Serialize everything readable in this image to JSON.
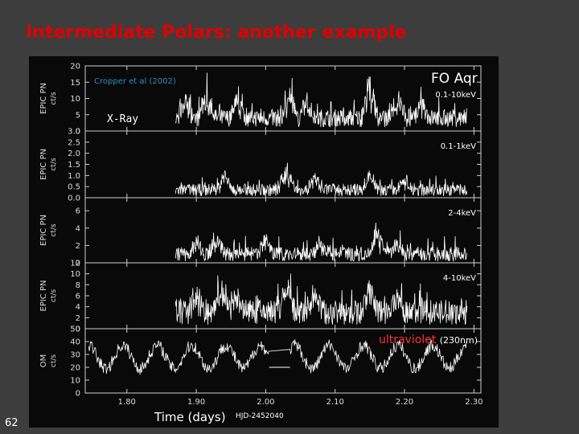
{
  "slide": {
    "title": "Intermediate Polars: another example",
    "number": "62"
  },
  "annotations": {
    "citation": "Cropper et al (2002)",
    "xray_label": "X-Ray",
    "object_name": "FO Aqr"
  },
  "chart_data": {
    "type": "line",
    "xlabel": "Time (days)",
    "xlabel_sub": "HJD-2452040",
    "x_range": [
      1.74,
      2.31
    ],
    "x_ticks": [
      "1.80",
      "1.90",
      "2.00",
      "2.10",
      "2.20",
      "2.30"
    ],
    "x_tick_values": [
      1.8,
      1.9,
      2.0,
      2.1,
      2.2,
      2.3
    ],
    "panels": [
      {
        "id": "epic-pn-0.1-10keV",
        "ylabel": "EPIC PN",
        "yunit": "ct/s",
        "band": "0.1-10keV",
        "ylim": [
          0,
          20
        ],
        "y_tick_labels": [
          "20",
          "15",
          "10",
          "5",
          "0"
        ],
        "y_tick_values": [
          20,
          15,
          10,
          5,
          0
        ],
        "data_range": [
          1.87,
          2.29
        ],
        "baseline": 4,
        "spread": 3,
        "peak_times": [
          1.885,
          1.915,
          1.96,
          2.035,
          2.06,
          2.15,
          2.19,
          2.225
        ],
        "peak_heights": [
          6,
          7,
          6,
          9,
          5,
          10,
          6,
          4
        ],
        "color": "#ffffff"
      },
      {
        "id": "epic-pn-0.1-1keV",
        "ylabel": "EPIC PN",
        "yunit": "ct/s",
        "band": "0.1-1keV",
        "ylim": [
          0,
          3
        ],
        "y_tick_labels": [
          "3.0",
          "2.5",
          "2.0",
          "1.5",
          "1.0",
          "0.5",
          "0.0"
        ],
        "y_tick_values": [
          3.0,
          2.5,
          2.0,
          1.5,
          1.0,
          0.5,
          0.0
        ],
        "data_range": [
          1.87,
          2.29
        ],
        "baseline": 0.35,
        "spread": 0.3,
        "peak_times": [
          1.94,
          2.03,
          2.07,
          2.15,
          2.2
        ],
        "peak_heights": [
          0.6,
          1.1,
          0.5,
          0.7,
          0.5
        ],
        "color": "#ffffff"
      },
      {
        "id": "epic-pn-2-4keV",
        "ylabel": "EPIC PN",
        "yunit": "ct/s",
        "band": "2-4keV",
        "ylim": [
          0,
          7.5
        ],
        "y_tick_labels": [
          "6",
          "4",
          "2",
          "0"
        ],
        "y_tick_values": [
          6,
          4,
          2,
          0
        ],
        "data_range": [
          1.87,
          2.29
        ],
        "baseline": 1.0,
        "spread": 0.9,
        "peak_times": [
          1.9,
          1.93,
          2.0,
          2.08,
          2.16,
          2.19
        ],
        "peak_heights": [
          1.5,
          1.8,
          1.6,
          1.5,
          3.0,
          1.3
        ],
        "color": "#ffffff"
      },
      {
        "id": "epic-pn-4-10keV",
        "ylabel": "EPIC PN",
        "yunit": "ct/s",
        "band": "4-10keV",
        "ylim": [
          0,
          12
        ],
        "y_tick_labels": [
          "12",
          "10",
          "8",
          "6",
          "4",
          "2",
          "0"
        ],
        "y_tick_values": [
          12,
          10,
          8,
          6,
          4,
          2,
          0
        ],
        "data_range": [
          1.87,
          2.29
        ],
        "baseline": 3.0,
        "spread": 2.5,
        "peak_times": [
          1.9,
          1.935,
          1.96,
          2.03,
          2.07,
          2.15,
          2.19
        ],
        "peak_heights": [
          3.0,
          5.5,
          3.5,
          4.0,
          3.0,
          5.0,
          3.0
        ],
        "color": "#ffffff"
      },
      {
        "id": "om-ultraviolet",
        "ylabel": "OM",
        "yunit": "ct/s",
        "band": "ultraviolet",
        "band_extra": "(230nm)",
        "band_color": "#ff3333",
        "ylim": [
          0,
          50
        ],
        "y_tick_labels": [
          "50",
          "40",
          "30",
          "20",
          "10",
          "0"
        ],
        "y_tick_values": [
          50,
          40,
          30,
          20,
          10,
          0
        ],
        "data_range": [
          1.745,
          2.29
        ],
        "gap": [
          2.005,
          2.035
        ],
        "baseline": 28,
        "spread": 6,
        "amplitude": 9,
        "period": 0.0495,
        "color": "#ffffff"
      }
    ]
  }
}
